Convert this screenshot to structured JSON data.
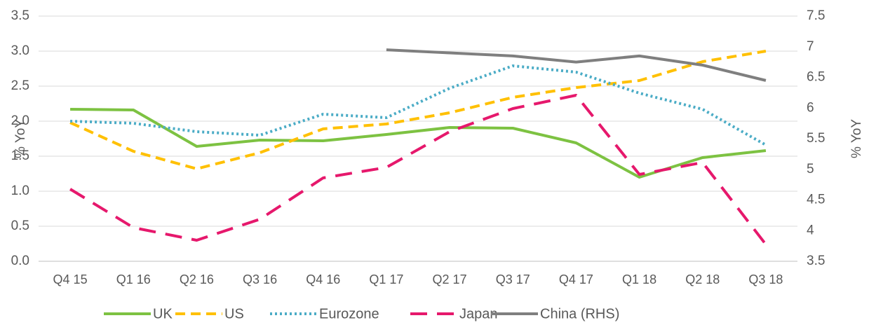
{
  "chart_data": {
    "type": "line",
    "categories": [
      "Q4 15",
      "Q1 16",
      "Q2 16",
      "Q3 16",
      "Q4 16",
      "Q1 17",
      "Q2 17",
      "Q3 17",
      "Q4 17",
      "Q1 18",
      "Q2 18",
      "Q3 18"
    ],
    "series": [
      {
        "name": "UK",
        "color": "#7dc242",
        "style": "solid",
        "values": [
          2.17,
          2.16,
          1.64,
          1.73,
          1.72,
          1.81,
          1.91,
          1.9,
          1.69,
          1.2,
          1.48,
          1.58
        ]
      },
      {
        "name": "US",
        "color": "#ffc000",
        "style": "dashed",
        "values": [
          1.98,
          1.57,
          1.32,
          1.55,
          1.89,
          1.96,
          2.12,
          2.34,
          2.48,
          2.58,
          2.85,
          3.0
        ]
      },
      {
        "name": "Eurozone",
        "color": "#4bacc6",
        "style": "dotted",
        "values": [
          2.0,
          1.97,
          1.85,
          1.8,
          2.1,
          2.05,
          2.47,
          2.79,
          2.7,
          2.4,
          2.17,
          1.66
        ]
      },
      {
        "name": "Japan",
        "color": "#e6186c",
        "style": "longdash",
        "values": [
          1.03,
          0.48,
          0.3,
          0.6,
          1.19,
          1.34,
          1.85,
          2.18,
          2.37,
          1.24,
          1.41,
          0.24
        ]
      },
      {
        "name": "China (RHS)",
        "color": "#7f7f7f",
        "style": "solid",
        "axis": "y2",
        "values": [
          null,
          null,
          null,
          null,
          null,
          6.95,
          6.9,
          6.85,
          6.75,
          6.85,
          6.7,
          6.45
        ]
      }
    ],
    "ylabel": "% YoY",
    "y2label": "% YoY",
    "ylim": [
      0,
      3.5
    ],
    "yticks": [
      {
        "value": 0,
        "label": "0.0"
      },
      0.5,
      {
        "value": 1,
        "label": "1.0"
      },
      1.5,
      {
        "value": 2,
        "label": "2.0"
      },
      2.5,
      {
        "value": 3,
        "label": "3.0"
      },
      3.5
    ],
    "y2lim": [
      3.5,
      7.5
    ],
    "y2ticks": [
      3.5,
      4,
      4.5,
      5,
      5.5,
      6,
      6.5,
      7,
      7.5
    ],
    "grid": true,
    "legend": "bottom"
  }
}
